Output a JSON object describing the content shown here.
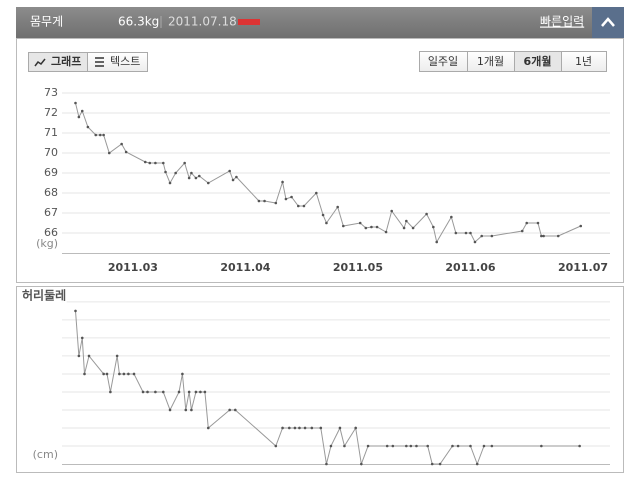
{
  "header": {
    "label": "몸무게",
    "value": "66.3kg",
    "date": "2011.07.18",
    "link": "빠른입력"
  },
  "view_tabs": {
    "items": [
      "그래프",
      "텍스트"
    ],
    "selected": 0
  },
  "range_tabs": {
    "items": [
      "일주일",
      "1개월",
      "6개월",
      "1년"
    ],
    "selected": 2
  },
  "chart_data": [
    {
      "type": "line",
      "y_unit": "(kg)",
      "color": "#999999",
      "marker_color": "#555555",
      "grid": true,
      "show_ytick_labels": true,
      "xlim": [
        2.37,
        7.24
      ],
      "xticks": [
        {
          "value": 3,
          "label": "2011.03"
        },
        {
          "value": 4,
          "label": "2011.04"
        },
        {
          "value": 5,
          "label": "2011.05"
        },
        {
          "value": 6,
          "label": "2011.06"
        },
        {
          "value": 7,
          "label": "2011.07"
        }
      ],
      "ylim": [
        65,
        73.4
      ],
      "yticks": [
        66,
        67,
        68,
        69,
        70,
        71,
        72,
        73
      ],
      "x": [
        2.49,
        2.52,
        2.55,
        2.6,
        2.67,
        2.71,
        2.74,
        2.79,
        2.9,
        2.94,
        3.11,
        3.15,
        3.2,
        3.27,
        3.29,
        3.33,
        3.38,
        3.46,
        3.5,
        3.52,
        3.56,
        3.59,
        3.67,
        3.86,
        3.89,
        3.92,
        4.12,
        4.17,
        4.27,
        4.33,
        4.36,
        4.41,
        4.47,
        4.52,
        4.63,
        4.69,
        4.72,
        4.82,
        4.87,
        5.02,
        5.07,
        5.12,
        5.17,
        5.25,
        5.3,
        5.41,
        5.43,
        5.49,
        5.61,
        5.67,
        5.7,
        5.83,
        5.87,
        5.96,
        6.0,
        6.04,
        6.1,
        6.19,
        6.46,
        6.5,
        6.6,
        6.63,
        6.65,
        6.78,
        6.98
      ],
      "values": [
        72.5,
        71.8,
        72.1,
        71.3,
        70.9,
        70.9,
        70.9,
        70.0,
        70.45,
        70.05,
        69.55,
        69.5,
        69.5,
        69.5,
        69.05,
        68.5,
        69.0,
        69.5,
        68.75,
        69.0,
        68.75,
        68.85,
        68.5,
        69.1,
        68.65,
        68.8,
        67.6,
        67.6,
        67.5,
        68.55,
        67.7,
        67.8,
        67.35,
        67.35,
        68.0,
        66.9,
        66.5,
        67.3,
        66.35,
        66.5,
        66.25,
        66.3,
        66.3,
        66.05,
        67.1,
        66.25,
        66.6,
        66.25,
        66.95,
        66.3,
        65.55,
        66.8,
        66.0,
        66.0,
        66.0,
        65.55,
        65.85,
        65.85,
        66.1,
        66.5,
        66.5,
        65.85,
        65.85,
        65.85,
        66.35
      ]
    },
    {
      "type": "line",
      "title": "허리둘레",
      "y_unit": "(cm)",
      "color": "#999999",
      "marker_color": "#555555",
      "grid": true,
      "show_ytick_labels": false,
      "xlim": [
        2.37,
        7.24
      ],
      "ylim": [
        81,
        90.55
      ],
      "yticks": [
        82,
        83,
        84,
        85,
        86,
        87,
        88,
        89,
        90
      ],
      "x": [
        2.49,
        2.52,
        2.55,
        2.57,
        2.61,
        2.74,
        2.77,
        2.8,
        2.86,
        2.88,
        2.92,
        2.96,
        3.01,
        3.09,
        3.13,
        3.2,
        3.27,
        3.33,
        3.41,
        3.44,
        3.47,
        3.5,
        3.52,
        3.56,
        3.6,
        3.64,
        3.67,
        3.86,
        3.91,
        4.27,
        4.33,
        4.39,
        4.44,
        4.48,
        4.53,
        4.59,
        4.67,
        4.72,
        4.76,
        4.84,
        4.88,
        4.98,
        5.03,
        5.09,
        5.26,
        5.31,
        5.43,
        5.47,
        5.52,
        5.62,
        5.66,
        5.73,
        5.84,
        5.89,
        6.0,
        6.06,
        6.12,
        6.19,
        6.63,
        6.97
      ],
      "values": [
        89.5,
        87,
        88,
        86,
        87,
        86,
        86,
        85,
        87,
        86,
        86,
        86,
        86,
        85,
        85,
        85,
        85,
        84,
        85,
        86,
        84,
        85,
        84,
        85,
        85,
        85,
        83,
        84,
        84,
        82,
        83,
        83,
        83,
        83,
        83,
        83,
        83,
        81,
        82,
        83,
        82,
        83,
        81,
        82,
        82,
        82,
        82,
        82,
        82,
        82,
        81,
        81,
        82,
        82,
        82,
        81,
        82,
        82,
        82,
        82
      ]
    }
  ]
}
